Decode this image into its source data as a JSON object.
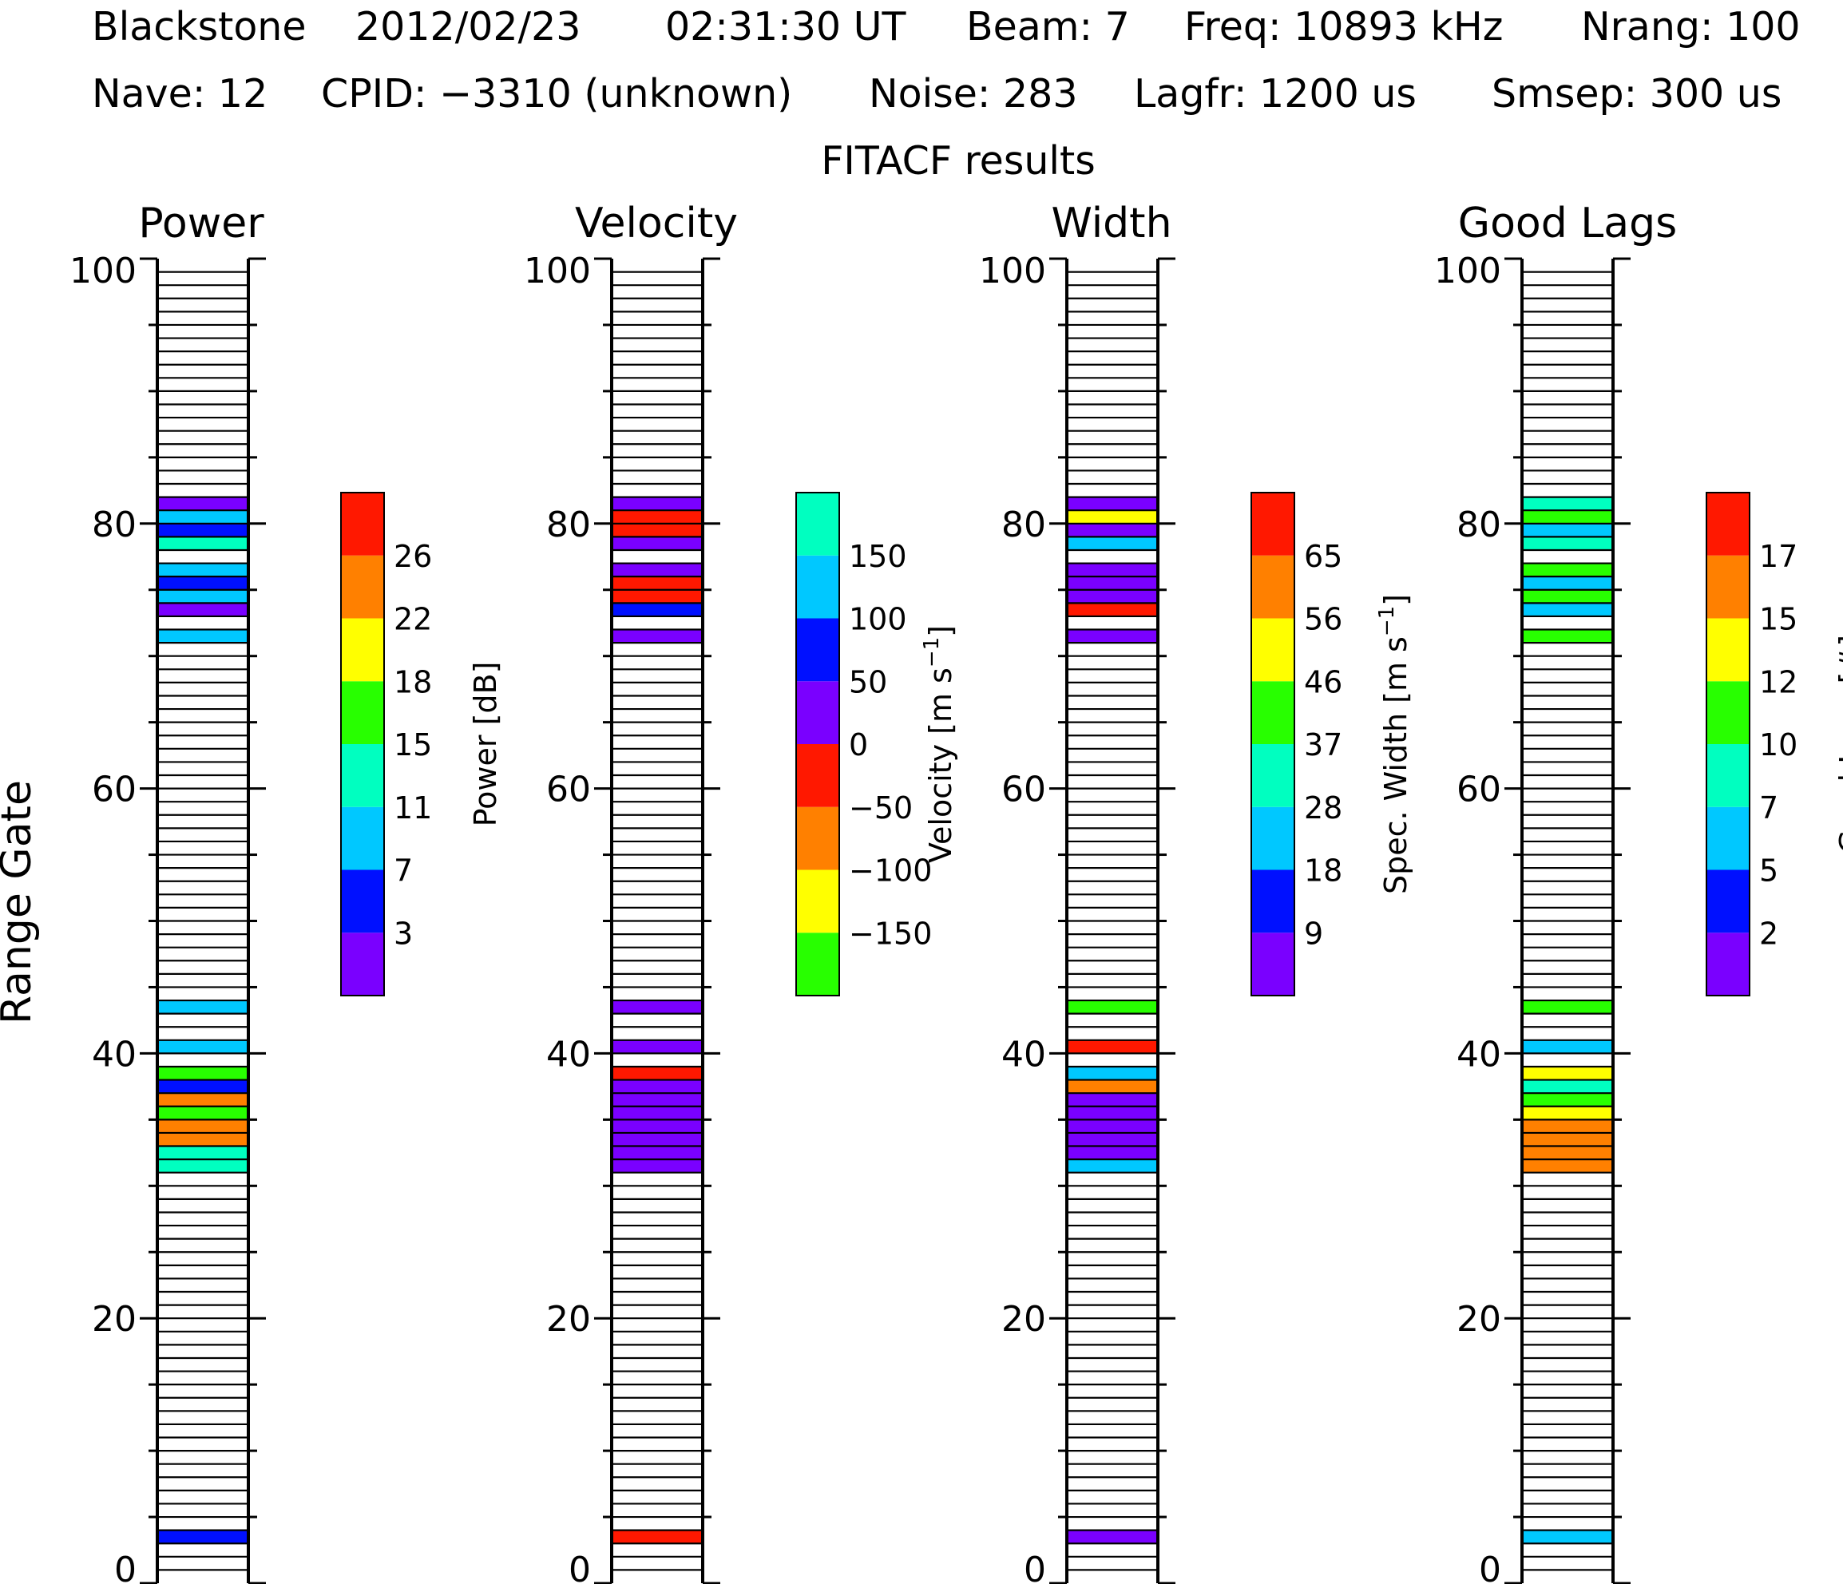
{
  "header": {
    "line1": [
      "Blackstone",
      "2012/02/23",
      "02:31:30 UT",
      "Beam: 7",
      "Freq: 10893 kHz",
      "Nrang: 100"
    ],
    "line2": [
      "Nave: 12",
      "CPID: −3310 (unknown)",
      "Noise: 283",
      "Lagfr: 1200 us",
      "Smsep: 300 us"
    ],
    "line3": "FITACF results"
  },
  "y_axis_label": "Range Gate",
  "colors": {
    "purple": "#7a00ff",
    "blue": "#0010ff",
    "cyan": "#00c8ff",
    "aqua": "#00ffc0",
    "green": "#28ff00",
    "yellow": "#ffff00",
    "orange": "#ff8000",
    "red": "#ff1800"
  },
  "chart_data": [
    {
      "type": "heatmap",
      "title": "Power",
      "ylabel": "Range Gate",
      "ylim": [
        0,
        100
      ],
      "yticks": [
        "0",
        "20",
        "40",
        "60",
        "80",
        "100"
      ],
      "colorbar": {
        "label": "Power [dB]",
        "unit_superscript": "",
        "tick_labels": [
          "3",
          "7",
          "11",
          "15",
          "18",
          "22",
          "26"
        ],
        "colors": [
          "purple",
          "blue",
          "cyan",
          "aqua",
          "green",
          "yellow",
          "orange",
          "red"
        ]
      },
      "gates": [
        {
          "gate": 3,
          "color": "blue"
        },
        {
          "gate": 31,
          "color": "aqua"
        },
        {
          "gate": 32,
          "color": "aqua"
        },
        {
          "gate": 33,
          "color": "orange"
        },
        {
          "gate": 34,
          "color": "orange"
        },
        {
          "gate": 35,
          "color": "green"
        },
        {
          "gate": 36,
          "color": "orange"
        },
        {
          "gate": 37,
          "color": "blue"
        },
        {
          "gate": 38,
          "color": "green"
        },
        {
          "gate": 40,
          "color": "cyan"
        },
        {
          "gate": 43,
          "color": "cyan"
        },
        {
          "gate": 71,
          "color": "cyan"
        },
        {
          "gate": 73,
          "color": "purple"
        },
        {
          "gate": 74,
          "color": "cyan"
        },
        {
          "gate": 75,
          "color": "blue"
        },
        {
          "gate": 76,
          "color": "cyan"
        },
        {
          "gate": 78,
          "color": "aqua"
        },
        {
          "gate": 79,
          "color": "blue"
        },
        {
          "gate": 80,
          "color": "cyan"
        },
        {
          "gate": 81,
          "color": "purple"
        }
      ]
    },
    {
      "type": "heatmap",
      "title": "Velocity",
      "ylabel": "",
      "ylim": [
        0,
        100
      ],
      "yticks": [
        "0",
        "20",
        "40",
        "60",
        "80",
        "100"
      ],
      "colorbar": {
        "label": "Velocity [m s",
        "unit_superscript": "−1",
        "label_suffix": "]",
        "tick_labels": [
          "−150",
          "−100",
          "−50",
          "0",
          "50",
          "100",
          "150"
        ],
        "colors": [
          "green",
          "yellow",
          "orange",
          "red",
          "purple",
          "blue",
          "cyan",
          "aqua"
        ]
      },
      "gates": [
        {
          "gate": 3,
          "color": "red"
        },
        {
          "gate": 31,
          "color": "purple"
        },
        {
          "gate": 32,
          "color": "purple"
        },
        {
          "gate": 33,
          "color": "purple"
        },
        {
          "gate": 34,
          "color": "purple"
        },
        {
          "gate": 35,
          "color": "purple"
        },
        {
          "gate": 36,
          "color": "purple"
        },
        {
          "gate": 37,
          "color": "purple"
        },
        {
          "gate": 38,
          "color": "red"
        },
        {
          "gate": 40,
          "color": "purple"
        },
        {
          "gate": 43,
          "color": "purple"
        },
        {
          "gate": 71,
          "color": "purple"
        },
        {
          "gate": 73,
          "color": "blue"
        },
        {
          "gate": 74,
          "color": "red"
        },
        {
          "gate": 75,
          "color": "red"
        },
        {
          "gate": 76,
          "color": "purple"
        },
        {
          "gate": 78,
          "color": "purple"
        },
        {
          "gate": 79,
          "color": "red"
        },
        {
          "gate": 80,
          "color": "red"
        },
        {
          "gate": 81,
          "color": "purple"
        }
      ]
    },
    {
      "type": "heatmap",
      "title": "Width",
      "ylabel": "",
      "ylim": [
        0,
        100
      ],
      "yticks": [
        "0",
        "20",
        "40",
        "60",
        "80",
        "100"
      ],
      "colorbar": {
        "label": "Spec. Width [m s",
        "unit_superscript": "−1",
        "label_suffix": "]",
        "tick_labels": [
          "9",
          "18",
          "28",
          "37",
          "46",
          "56",
          "65"
        ],
        "colors": [
          "purple",
          "blue",
          "cyan",
          "aqua",
          "green",
          "yellow",
          "orange",
          "red"
        ]
      },
      "gates": [
        {
          "gate": 3,
          "color": "purple"
        },
        {
          "gate": 31,
          "color": "cyan"
        },
        {
          "gate": 32,
          "color": "purple"
        },
        {
          "gate": 33,
          "color": "purple"
        },
        {
          "gate": 34,
          "color": "purple"
        },
        {
          "gate": 35,
          "color": "purple"
        },
        {
          "gate": 36,
          "color": "purple"
        },
        {
          "gate": 37,
          "color": "orange"
        },
        {
          "gate": 38,
          "color": "cyan"
        },
        {
          "gate": 40,
          "color": "red"
        },
        {
          "gate": 43,
          "color": "green"
        },
        {
          "gate": 71,
          "color": "purple"
        },
        {
          "gate": 73,
          "color": "red"
        },
        {
          "gate": 74,
          "color": "purple"
        },
        {
          "gate": 75,
          "color": "purple"
        },
        {
          "gate": 76,
          "color": "purple"
        },
        {
          "gate": 78,
          "color": "cyan"
        },
        {
          "gate": 79,
          "color": "purple"
        },
        {
          "gate": 80,
          "color": "yellow"
        },
        {
          "gate": 81,
          "color": "purple"
        }
      ]
    },
    {
      "type": "heatmap",
      "title": "Good Lags",
      "ylabel": "",
      "ylim": [
        0,
        100
      ],
      "yticks": [
        "0",
        "20",
        "40",
        "60",
        "80",
        "100"
      ],
      "colorbar": {
        "label": "Good Lags [#]",
        "unit_superscript": "",
        "tick_labels": [
          "2",
          "5",
          "7",
          "10",
          "12",
          "15",
          "17"
        ],
        "colors": [
          "purple",
          "blue",
          "cyan",
          "aqua",
          "green",
          "yellow",
          "orange",
          "red"
        ]
      },
      "gates": [
        {
          "gate": 3,
          "color": "cyan"
        },
        {
          "gate": 31,
          "color": "orange"
        },
        {
          "gate": 32,
          "color": "orange"
        },
        {
          "gate": 33,
          "color": "orange"
        },
        {
          "gate": 34,
          "color": "orange"
        },
        {
          "gate": 35,
          "color": "yellow"
        },
        {
          "gate": 36,
          "color": "green"
        },
        {
          "gate": 37,
          "color": "aqua"
        },
        {
          "gate": 38,
          "color": "yellow"
        },
        {
          "gate": 40,
          "color": "cyan"
        },
        {
          "gate": 43,
          "color": "green"
        },
        {
          "gate": 71,
          "color": "green"
        },
        {
          "gate": 73,
          "color": "cyan"
        },
        {
          "gate": 74,
          "color": "green"
        },
        {
          "gate": 75,
          "color": "cyan"
        },
        {
          "gate": 76,
          "color": "green"
        },
        {
          "gate": 78,
          "color": "aqua"
        },
        {
          "gate": 79,
          "color": "cyan"
        },
        {
          "gate": 80,
          "color": "green"
        },
        {
          "gate": 81,
          "color": "aqua"
        }
      ]
    }
  ]
}
